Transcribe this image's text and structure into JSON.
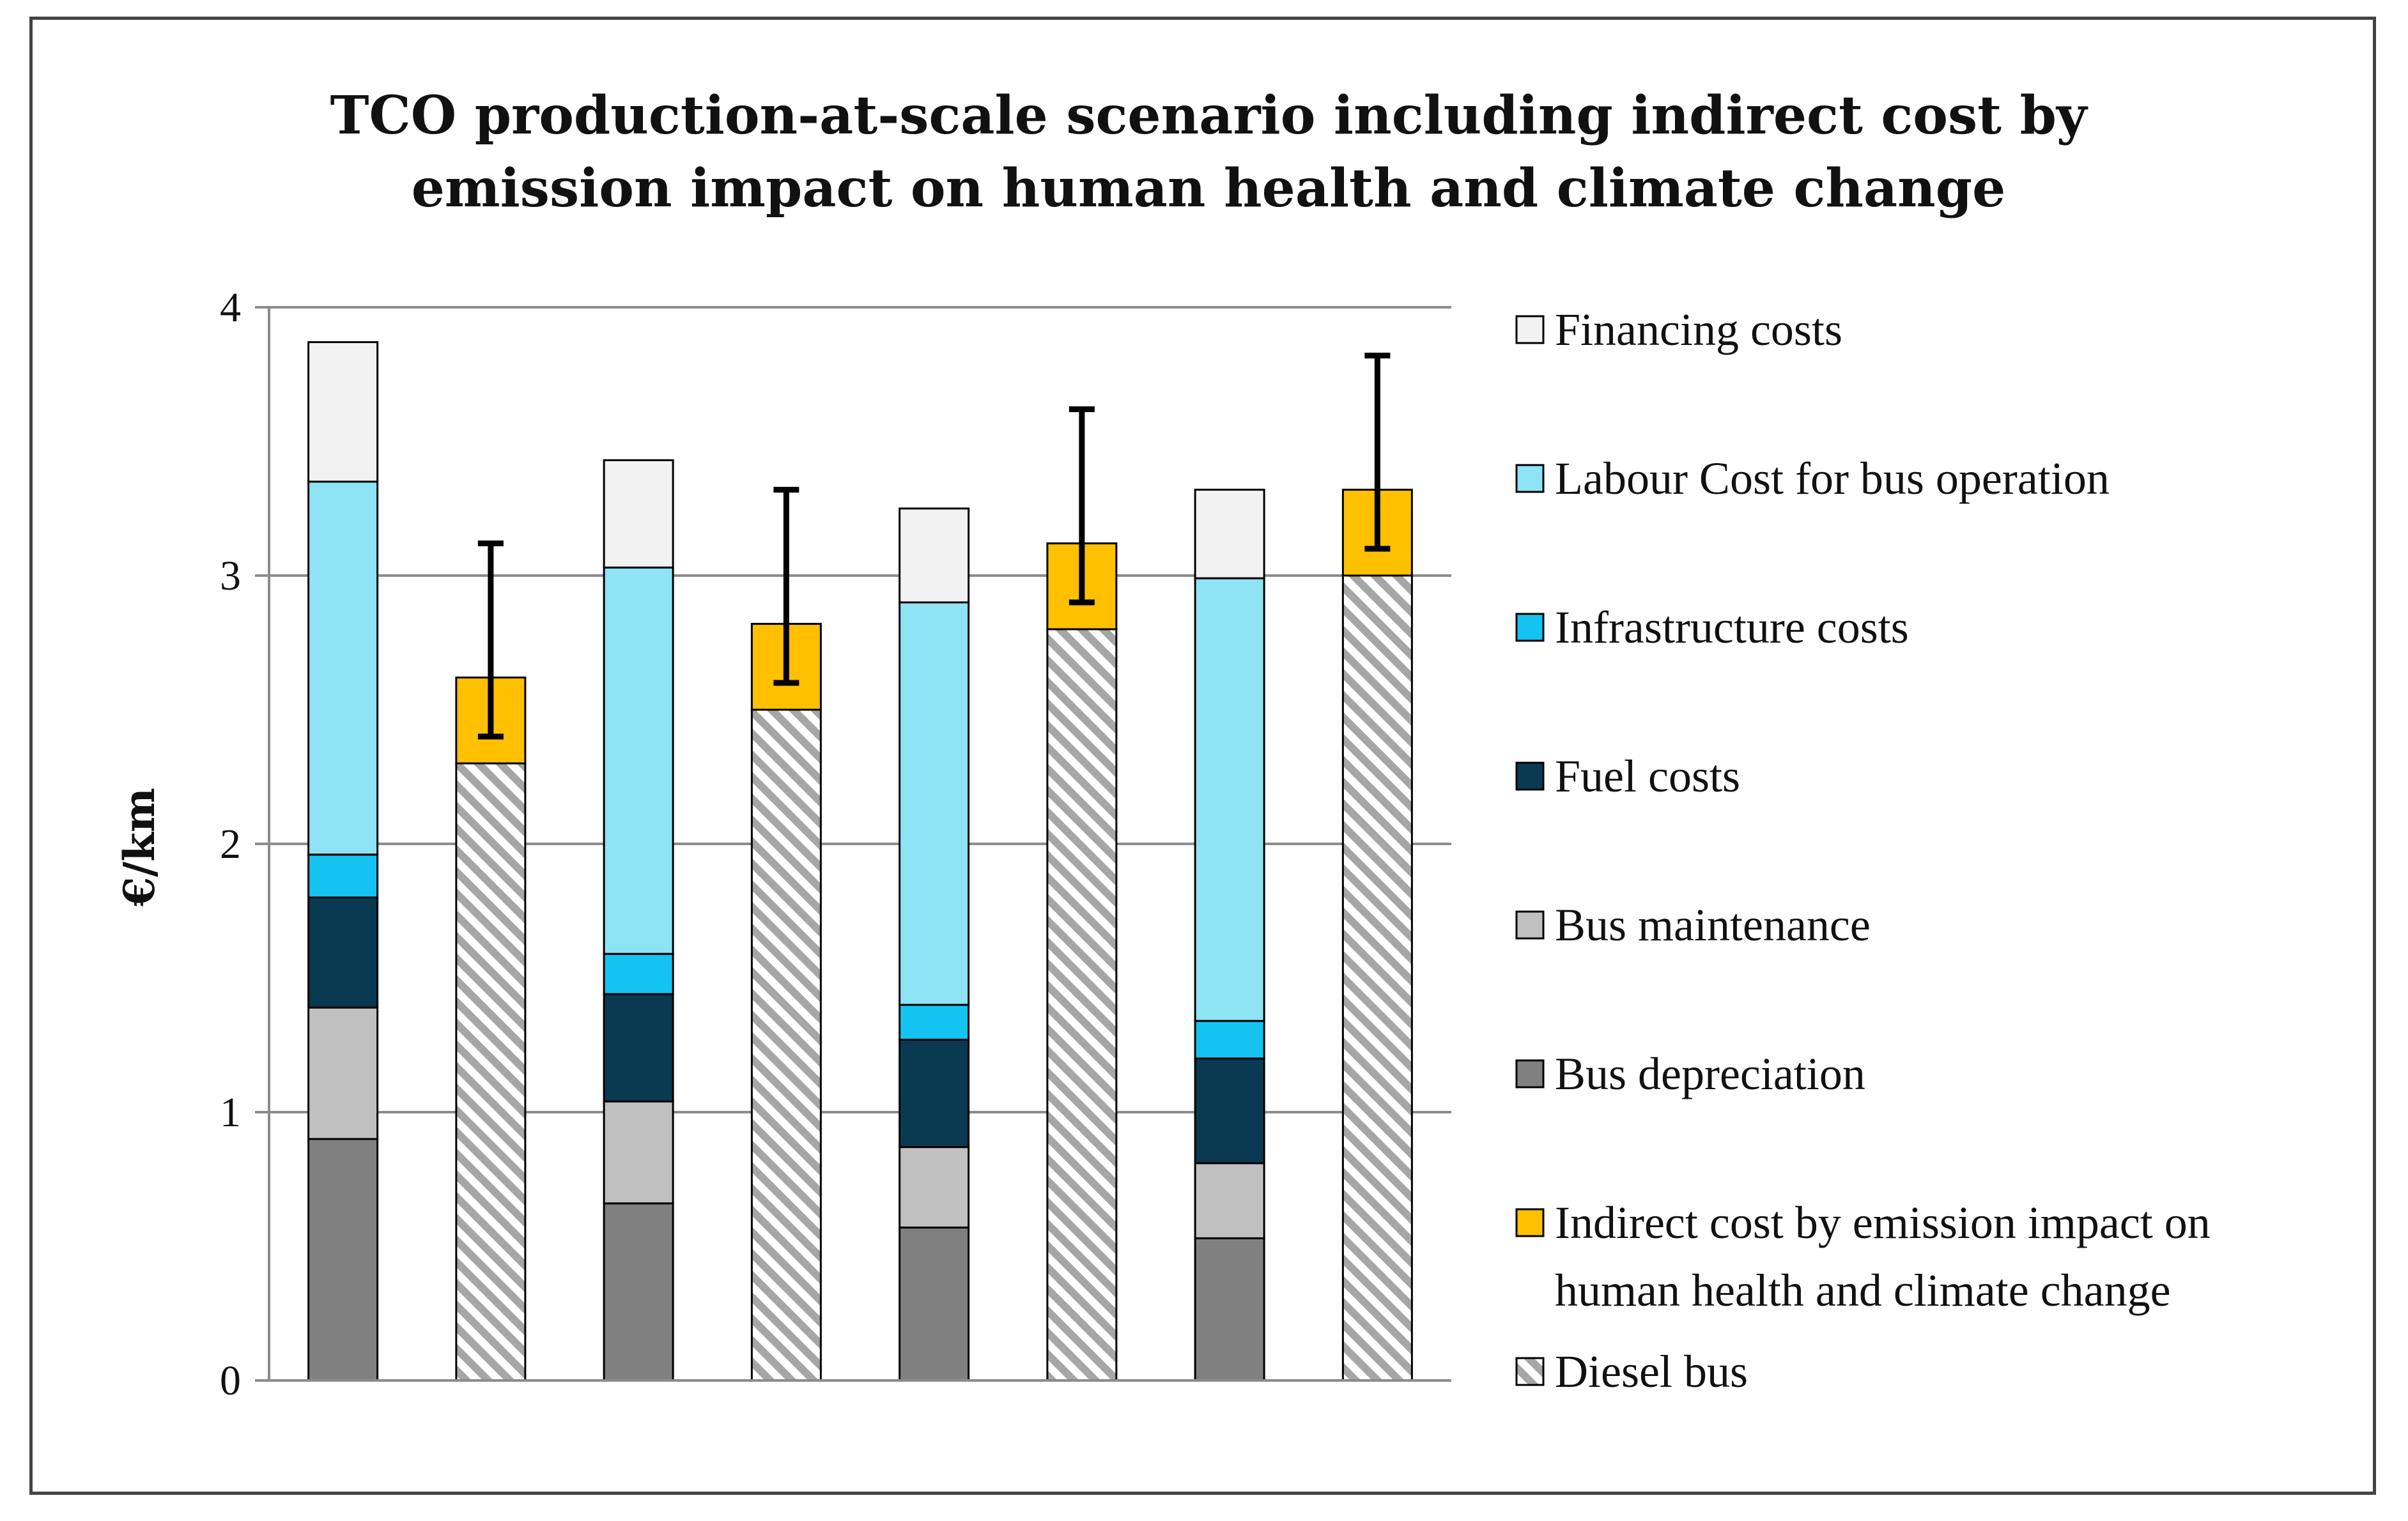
{
  "chart_data": {
    "type": "bar",
    "stacked": true,
    "title": "TCO production-at-scale scenario including indirect cost by emission impact on human health and climate change",
    "title_lines": [
      "TCO production-at-scale scenario including indirect cost by",
      "emission impact on human health and climate change"
    ],
    "xlabel": "",
    "ylabel": "€/km",
    "ylim": [
      0,
      4
    ],
    "yticks": [
      0,
      1,
      2,
      3,
      4
    ],
    "grid": true,
    "legend_position": "right",
    "categories": [
      "",
      "",
      "",
      "",
      "",
      "",
      "",
      ""
    ],
    "series": [
      {
        "key": "bus_depreciation",
        "name": "Bus depreciation",
        "color": "#808080",
        "pattern": "solid",
        "values": [
          0.9,
          0,
          0.66,
          0,
          0.57,
          0,
          0.53,
          0
        ]
      },
      {
        "key": "bus_maintenance",
        "name": "Bus maintenance",
        "color": "#c0c0c0",
        "pattern": "solid",
        "values": [
          0.49,
          0,
          0.38,
          0,
          0.3,
          0,
          0.28,
          0
        ]
      },
      {
        "key": "fuel_costs",
        "name": "Fuel costs",
        "color": "#0a3a52",
        "pattern": "solid",
        "values": [
          0.41,
          0,
          0.4,
          0,
          0.4,
          0,
          0.39,
          0
        ]
      },
      {
        "key": "infrastructure_costs",
        "name": "Infrastructure costs",
        "color": "#14c3f0",
        "pattern": "solid",
        "values": [
          0.16,
          0,
          0.15,
          0,
          0.13,
          0,
          0.14,
          0
        ]
      },
      {
        "key": "labour_cost",
        "name": "Labour Cost for bus operation",
        "color": "#8ee3f5",
        "pattern": "solid",
        "values": [
          1.39,
          0,
          1.44,
          0,
          1.5,
          0,
          1.65,
          0
        ]
      },
      {
        "key": "financing_costs",
        "name": "Financing costs",
        "color": "#f2f2f2",
        "pattern": "solid",
        "values": [
          0.52,
          0,
          0.4,
          0,
          0.35,
          0,
          0.33,
          0
        ]
      },
      {
        "key": "diesel_bus",
        "name": "Diesel bus",
        "color": "#a6a6a6",
        "pattern": "hatch",
        "values": [
          0,
          2.3,
          0,
          2.5,
          0,
          2.8,
          0,
          3.0
        ]
      },
      {
        "key": "indirect_cost",
        "name": "Indirect cost by emission impact on human health and climate change",
        "name_lines": [
          "Indirect cost by emission impact on",
          "human health and climate change"
        ],
        "color": "#ffc000",
        "pattern": "solid",
        "values": [
          0,
          0.32,
          0,
          0.32,
          0,
          0.32,
          0,
          0.32
        ]
      }
    ],
    "error_bars": [
      {
        "category_index": 1,
        "low": 2.4,
        "high": 3.12
      },
      {
        "category_index": 3,
        "low": 2.6,
        "high": 3.32
      },
      {
        "category_index": 5,
        "low": 2.9,
        "high": 3.62
      },
      {
        "category_index": 7,
        "low": 3.1,
        "high": 3.82
      }
    ],
    "legend_order": [
      "financing_costs",
      "labour_cost",
      "infrastructure_costs",
      "fuel_costs",
      "bus_maintenance",
      "bus_depreciation",
      "indirect_cost",
      "diesel_bus"
    ]
  }
}
